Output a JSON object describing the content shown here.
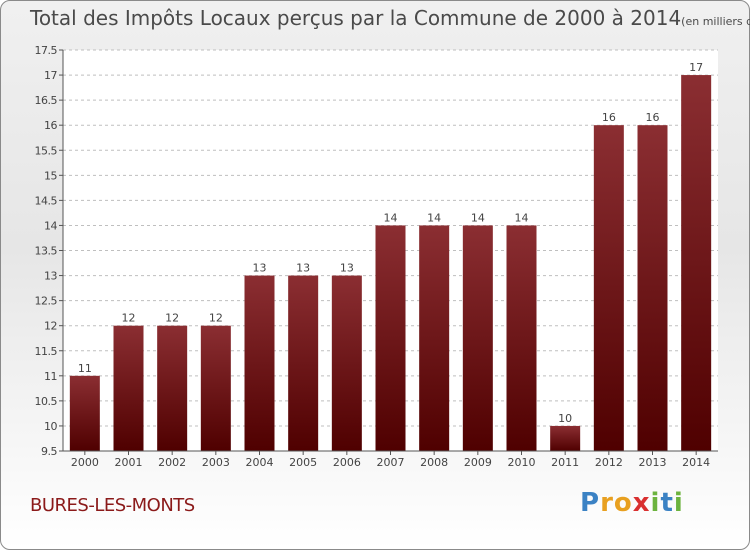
{
  "title": "Total des Impôts Locaux perçus par la Commune de 2000 à 2014",
  "subtitle": "(en milliers d'€)",
  "commune": "BURES-LES-MONTS",
  "logo": {
    "letters": [
      "P",
      "r",
      "o",
      "x",
      "i",
      "t",
      "i"
    ],
    "colors": [
      "#3b82c4",
      "#e8a020",
      "#e8a020",
      "#d93030",
      "#6cb33e",
      "#3b82c4",
      "#6cb33e"
    ]
  },
  "colors": {
    "bar_top": "#8b2e32",
    "bar_bottom": "#4f0000",
    "grid": "#bfbfbf"
  },
  "chart_data": {
    "type": "bar",
    "categories": [
      "2000",
      "2001",
      "2002",
      "2003",
      "2004",
      "2005",
      "2006",
      "2007",
      "2008",
      "2009",
      "2010",
      "2011",
      "2012",
      "2013",
      "2014"
    ],
    "values": [
      11,
      12,
      12,
      12,
      13,
      13,
      13,
      14,
      14,
      14,
      14,
      10,
      16,
      16,
      17
    ],
    "data_labels": [
      "11",
      "12",
      "12",
      "12",
      "13",
      "13",
      "13",
      "14",
      "14",
      "14",
      "14",
      "10",
      "16",
      "16",
      "17"
    ],
    "ylim": [
      9.5,
      17.5
    ],
    "yticks": [
      9.5,
      10,
      10.5,
      11,
      11.5,
      12,
      12.5,
      13,
      13.5,
      14,
      14.5,
      15,
      15.5,
      16,
      16.5,
      17,
      17.5
    ],
    "ytick_labels": [
      "9.5",
      "10",
      "10.5",
      "11",
      "11.5",
      "12",
      "12.5",
      "13",
      "13.5",
      "14",
      "14.5",
      "15",
      "15.5",
      "16",
      "16.5",
      "17",
      "17.5"
    ],
    "grid": true
  }
}
